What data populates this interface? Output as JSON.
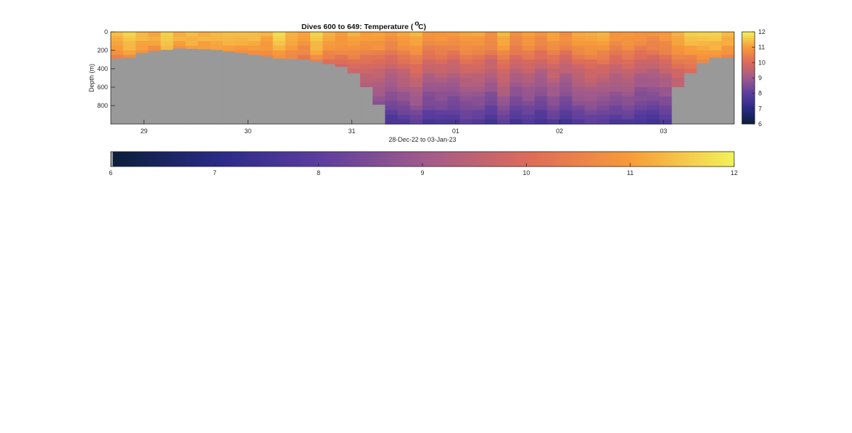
{
  "chart_data": {
    "type": "heatmap",
    "title": "Dives 600 to 649: Temperature (",
    "title_degree": "o",
    "title_unit": " C)",
    "xlabel": "28-Dec-22 to 03-Jan-23",
    "ylabel": "Depth (m)",
    "x_ticks": [
      "29",
      "30",
      "31",
      "01",
      "02",
      "03"
    ],
    "x_tick_positions_days": [
      1.0,
      2.0,
      3.0,
      4.0,
      5.0,
      6.0
    ],
    "xlim_days": [
      0.68,
      6.68
    ],
    "y_ticks": [
      "0",
      "200",
      "400",
      "600",
      "800"
    ],
    "y_tick_values": [
      0,
      200,
      400,
      600,
      800
    ],
    "ylim": [
      0,
      1000
    ],
    "y_reversed": true,
    "value_range": [
      6,
      12
    ],
    "colorbar_vertical_ticks": [
      "6",
      "7",
      "8",
      "9",
      "10",
      "11",
      "12"
    ],
    "colorbar_horizontal_ticks": [
      "6",
      "7",
      "8",
      "9",
      "10",
      "11",
      "12"
    ],
    "dives": 50,
    "bottom_depth_by_dive": [
      290,
      280,
      230,
      210,
      195,
      180,
      185,
      190,
      195,
      215,
      230,
      250,
      270,
      290,
      295,
      300,
      320,
      350,
      380,
      450,
      600,
      790,
      1000,
      1000,
      1000,
      1000,
      1000,
      1000,
      1000,
      1000,
      1000,
      1000,
      1000,
      1000,
      1000,
      1000,
      1000,
      1000,
      1000,
      1000,
      1000,
      1000,
      1000,
      1000,
      1000,
      600,
      450,
      340,
      280,
      280
    ],
    "temperature_profile": {
      "depths": [
        0,
        100,
        200,
        300,
        400,
        500,
        600,
        700,
        800,
        900,
        1000
      ],
      "values": [
        11.1,
        10.9,
        10.6,
        10.1,
        9.7,
        9.4,
        9.1,
        8.8,
        8.5,
        8.1,
        7.7
      ]
    },
    "no_data_color": "#999999"
  }
}
